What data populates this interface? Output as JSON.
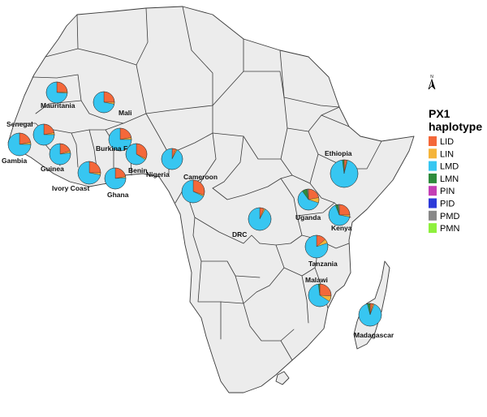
{
  "legend": {
    "title_line1": "PX1",
    "title_line2": "haplotype",
    "items": [
      {
        "label": "LID",
        "color": "#f4683a"
      },
      {
        "label": "LIN",
        "color": "#f5b43a"
      },
      {
        "label": "LMD",
        "color": "#37c6f1"
      },
      {
        "label": "LMN",
        "color": "#2e8b3c"
      },
      {
        "label": "PIN",
        "color": "#c43fb5"
      },
      {
        "label": "PID",
        "color": "#2d3ad9"
      },
      {
        "label": "PMD",
        "color": "#888888"
      },
      {
        "label": "PMN",
        "color": "#8ef03d"
      }
    ]
  },
  "north_arrow": {
    "label": "N",
    "icon": "north-arrow-icon"
  },
  "locations": [
    {
      "name": "Mauritania",
      "slices": {
        "LID": 0.24,
        "LIN": 0.02,
        "LMD": 0.74
      }
    },
    {
      "name": "Mali",
      "slices": {
        "LID": 0.25,
        "LIN": 0.03,
        "LMD": 0.72
      }
    },
    {
      "name": "Senegal",
      "slices": {
        "LID": 0.22,
        "LIN": 0.03,
        "LMD": 0.75
      }
    },
    {
      "name": "Gambia",
      "slices": {
        "LID": 0.22,
        "LIN": 0.03,
        "LMD": 0.75
      }
    },
    {
      "name": "Guinea",
      "slices": {
        "LID": 0.2,
        "LIN": 0.03,
        "LMD": 0.77
      }
    },
    {
      "name": "Burkina Faso",
      "slices": {
        "LID": 0.22,
        "LIN": 0.03,
        "LMD": 0.75
      }
    },
    {
      "name": "Benin",
      "slices": {
        "LID": 0.32,
        "LIN": 0.02,
        "LMD": 0.66
      }
    },
    {
      "name": "Ivory Coast",
      "slices": {
        "LID": 0.25,
        "LIN": 0.03,
        "LMD": 0.72
      }
    },
    {
      "name": "Ghana",
      "slices": {
        "LID": 0.22,
        "LIN": 0.02,
        "LMD": 0.76
      }
    },
    {
      "name": "Nigeria",
      "slices": {
        "LID": 0.06,
        "LIN": 0.02,
        "LMD": 0.92
      }
    },
    {
      "name": "Cameroon",
      "slices": {
        "LID": 0.3,
        "LIN": 0.02,
        "LMD": 0.68
      }
    },
    {
      "name": "Ethiopia",
      "slices": {
        "LID": 0.03,
        "LIN": 0.01,
        "LMD": 0.94,
        "LMN": 0.02
      }
    },
    {
      "name": "Uganda",
      "slices": {
        "LID": 0.22,
        "LIN": 0.08,
        "LMD": 0.6,
        "LMN": 0.08,
        "PMD": 0.02
      }
    },
    {
      "name": "DRC",
      "slices": {
        "LID": 0.06,
        "LIN": 0.02,
        "LMD": 0.92
      }
    },
    {
      "name": "Kenya",
      "slices": {
        "LID": 0.25,
        "LIN": 0.03,
        "LMD": 0.66,
        "LMN": 0.04,
        "PMD": 0.02
      }
    },
    {
      "name": "Tanzania",
      "slices": {
        "LID": 0.14,
        "LIN": 0.06,
        "LMD": 0.8
      }
    },
    {
      "name": "Malawi",
      "slices": {
        "LID": 0.26,
        "LIN": 0.08,
        "LMD": 0.64,
        "LMN": 0.02
      }
    },
    {
      "name": "Madagascar",
      "slices": {
        "LID": 0.04,
        "LIN": 0.02,
        "LMD": 0.9,
        "LMN": 0.04
      }
    }
  ]
}
